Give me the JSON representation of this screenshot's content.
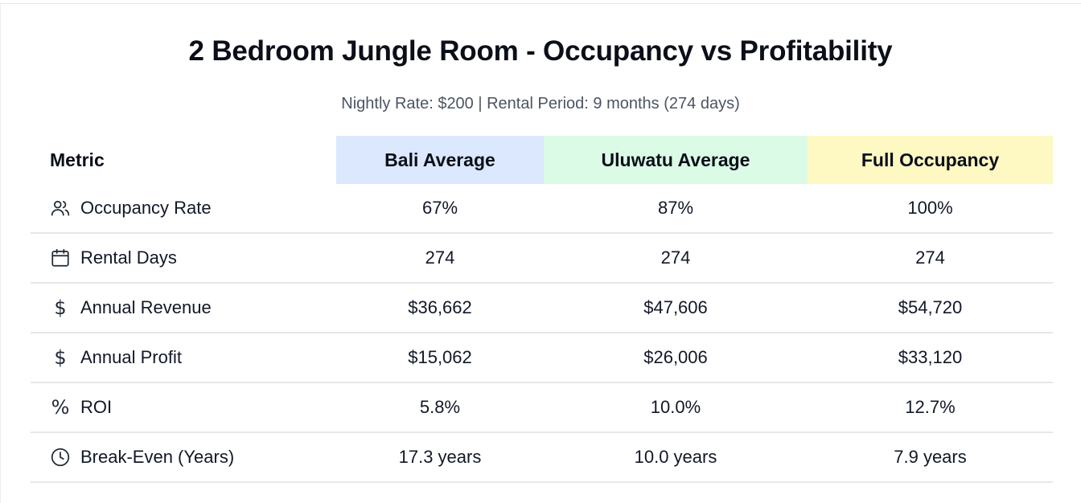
{
  "title": "2 Bedroom Jungle Room - Occupancy vs Profitability",
  "subtitle": "Nightly Rate: $200 | Rental Period: 9 months (274 days)",
  "colors": {
    "bali_header_bg": "#dbe8fd",
    "uluwatu_header_bg": "#dcfbe7",
    "full_header_bg": "#fef8c3"
  },
  "table": {
    "headers": [
      "Metric",
      "Bali Average",
      "Uluwatu Average",
      "Full Occupancy"
    ],
    "rows": [
      {
        "icon": "users-icon",
        "metric": "Occupancy Rate",
        "values": [
          "67%",
          "87%",
          "100%"
        ]
      },
      {
        "icon": "calendar-icon",
        "metric": "Rental Days",
        "values": [
          "274",
          "274",
          "274"
        ]
      },
      {
        "icon": "dollar-icon",
        "icon_glyph": "$",
        "metric": "Annual Revenue",
        "values": [
          "$36,662",
          "$47,606",
          "$54,720"
        ]
      },
      {
        "icon": "dollar-icon",
        "icon_glyph": "$",
        "metric": "Annual Profit",
        "values": [
          "$15,062",
          "$26,006",
          "$33,120"
        ]
      },
      {
        "icon": "percent-icon",
        "icon_glyph": "%",
        "metric": "ROI",
        "values": [
          "5.8%",
          "10.0%",
          "12.7%"
        ]
      },
      {
        "icon": "clock-icon",
        "metric": "Break-Even (Years)",
        "values": [
          "17.3 years",
          "10.0 years",
          "7.9 years"
        ]
      }
    ]
  }
}
